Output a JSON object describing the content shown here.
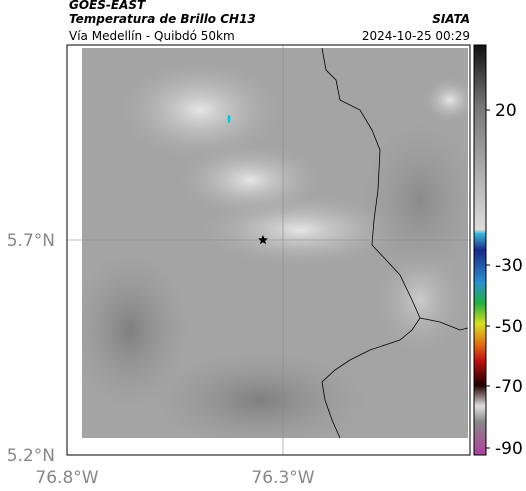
{
  "header": {
    "satellite": "GOES-EAST",
    "product": "Temperatura de Brillo CH13",
    "location": "Vía Medellín - Quibdó 50km",
    "source": "SIATA",
    "datetime": "2024-10-25 00:29"
  },
  "map": {
    "lat_labels": [
      "5.7°N",
      "5.2°N"
    ],
    "lon_labels": [
      "76.8°W",
      "76.3°W"
    ]
  },
  "colorbar": {
    "ticks": [
      "20",
      "-30",
      "-50",
      "-70",
      "-90"
    ]
  }
}
